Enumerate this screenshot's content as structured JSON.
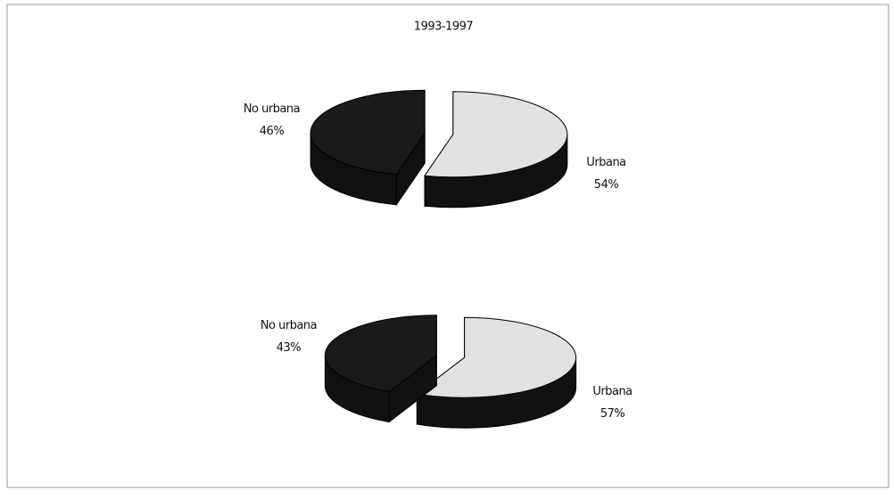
{
  "chart_data": [
    {
      "type": "pie",
      "title": "1993-1997",
      "categories": [
        "Urbana",
        "No urbana"
      ],
      "values": [
        54,
        46
      ],
      "value_labels": [
        "54%",
        "46%"
      ],
      "colors": [
        "#e2e2e2",
        "#1a1a1a"
      ]
    },
    {
      "type": "pie",
      "categories": [
        "Urbana",
        "No urbana"
      ],
      "values": [
        57,
        43
      ],
      "value_labels": [
        "57%",
        "43%"
      ],
      "colors": [
        "#e2e2e2",
        "#1a1a1a"
      ]
    }
  ]
}
